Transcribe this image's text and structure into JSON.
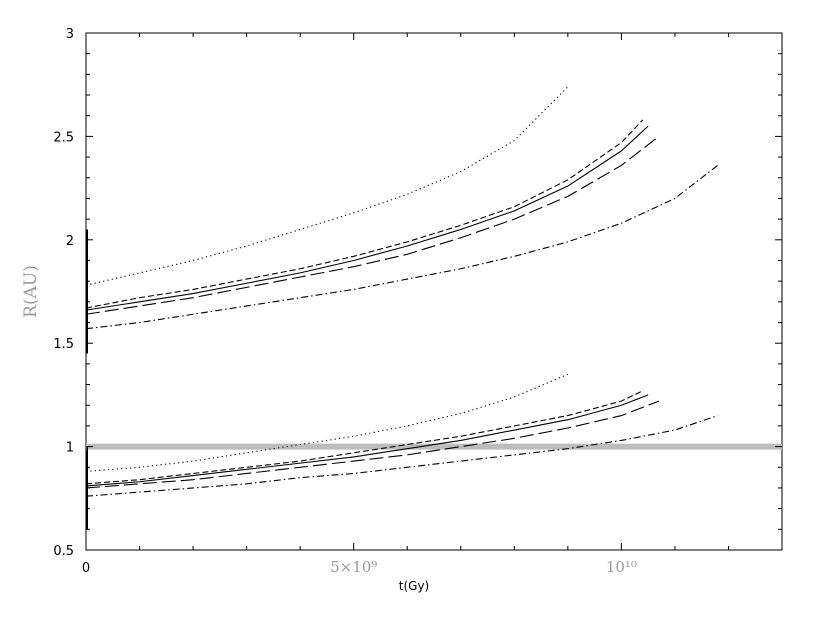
{
  "chart_data": {
    "type": "line",
    "title": "",
    "xlabel": "t(Gy)",
    "ylabel": "R(AU)",
    "xlim": [
      0,
      13000000000
    ],
    "ylim": [
      0.5,
      3
    ],
    "grid": false,
    "legend": "none",
    "x_ticks": [
      {
        "value": 0,
        "label": "0"
      },
      {
        "value": 5000000000,
        "label": "5×10⁹"
      },
      {
        "value": 10000000000,
        "label": "10¹⁰"
      }
    ],
    "y_ticks": [
      {
        "value": 0.5,
        "label": "0.5"
      },
      {
        "value": 1,
        "label": "1"
      },
      {
        "value": 1.5,
        "label": "1.5"
      },
      {
        "value": 2,
        "label": "2"
      },
      {
        "value": 2.5,
        "label": "2.5"
      },
      {
        "value": 3,
        "label": "3"
      }
    ],
    "reference_line": {
      "y": 1.0,
      "color": "#bdbdbd"
    },
    "series": [
      {
        "group": "upper",
        "style": "dotted",
        "x": [
          0,
          1000000000,
          2000000000,
          3000000000,
          4000000000,
          5000000000,
          6000000000,
          7000000000,
          8000000000,
          9000000000
        ],
        "y": [
          1.78,
          1.84,
          1.9,
          1.97,
          2.05,
          2.13,
          2.22,
          2.33,
          2.48,
          2.74
        ]
      },
      {
        "group": "upper",
        "style": "short-dash",
        "x": [
          0,
          1000000000,
          2000000000,
          3000000000,
          4000000000,
          5000000000,
          6000000000,
          7000000000,
          8000000000,
          9000000000,
          10000000000,
          10400000000
        ],
        "y": [
          1.67,
          1.72,
          1.76,
          1.81,
          1.86,
          1.92,
          1.99,
          2.07,
          2.16,
          2.29,
          2.47,
          2.58
        ]
      },
      {
        "group": "upper",
        "style": "solid",
        "x": [
          0,
          1000000000,
          2000000000,
          3000000000,
          4000000000,
          5000000000,
          6000000000,
          7000000000,
          8000000000,
          9000000000,
          10000000000,
          10500000000
        ],
        "y": [
          1.66,
          1.7,
          1.74,
          1.79,
          1.84,
          1.9,
          1.97,
          2.05,
          2.14,
          2.26,
          2.43,
          2.55
        ]
      },
      {
        "group": "upper",
        "style": "long-dash",
        "x": [
          0,
          1000000000,
          2000000000,
          3000000000,
          4000000000,
          5000000000,
          6000000000,
          7000000000,
          8000000000,
          9000000000,
          10000000000,
          10700000000
        ],
        "y": [
          1.64,
          1.68,
          1.72,
          1.77,
          1.82,
          1.87,
          1.93,
          2.01,
          2.1,
          2.21,
          2.36,
          2.5
        ]
      },
      {
        "group": "upper",
        "style": "dash-dot",
        "x": [
          0,
          1000000000,
          2000000000,
          3000000000,
          4000000000,
          5000000000,
          6000000000,
          7000000000,
          8000000000,
          9000000000,
          10000000000,
          11000000000,
          11800000000
        ],
        "y": [
          1.57,
          1.6,
          1.64,
          1.68,
          1.72,
          1.76,
          1.81,
          1.86,
          1.92,
          1.99,
          2.08,
          2.2,
          2.36
        ]
      },
      {
        "group": "lower",
        "style": "dotted",
        "x": [
          0,
          1000000000,
          2000000000,
          3000000000,
          4000000000,
          5000000000,
          6000000000,
          7000000000,
          8000000000,
          9000000000
        ],
        "y": [
          0.88,
          0.9,
          0.93,
          0.97,
          1.01,
          1.05,
          1.1,
          1.16,
          1.24,
          1.35
        ]
      },
      {
        "group": "lower",
        "style": "short-dash",
        "x": [
          0,
          1000000000,
          2000000000,
          3000000000,
          4000000000,
          5000000000,
          6000000000,
          7000000000,
          8000000000,
          9000000000,
          10000000000,
          10400000000
        ],
        "y": [
          0.82,
          0.84,
          0.87,
          0.9,
          0.93,
          0.97,
          1.01,
          1.05,
          1.1,
          1.15,
          1.22,
          1.27
        ]
      },
      {
        "group": "lower",
        "style": "solid",
        "x": [
          0,
          1000000000,
          2000000000,
          3000000000,
          4000000000,
          5000000000,
          6000000000,
          7000000000,
          8000000000,
          9000000000,
          10000000000,
          10500000000
        ],
        "y": [
          0.81,
          0.83,
          0.86,
          0.89,
          0.92,
          0.95,
          0.99,
          1.03,
          1.08,
          1.13,
          1.2,
          1.25
        ]
      },
      {
        "group": "lower",
        "style": "long-dash",
        "x": [
          0,
          1000000000,
          2000000000,
          3000000000,
          4000000000,
          5000000000,
          6000000000,
          7000000000,
          8000000000,
          9000000000,
          10000000000,
          10700000000
        ],
        "y": [
          0.8,
          0.82,
          0.84,
          0.87,
          0.9,
          0.93,
          0.96,
          1.0,
          1.04,
          1.09,
          1.15,
          1.22
        ]
      },
      {
        "group": "lower",
        "style": "dash-dot",
        "x": [
          0,
          1000000000,
          2000000000,
          3000000000,
          4000000000,
          5000000000,
          6000000000,
          7000000000,
          8000000000,
          9000000000,
          10000000000,
          11000000000,
          11800000000
        ],
        "y": [
          0.76,
          0.78,
          0.8,
          0.82,
          0.85,
          0.87,
          0.9,
          0.93,
          0.96,
          0.99,
          1.03,
          1.08,
          1.15
        ]
      }
    ],
    "line_color": "#000000"
  }
}
